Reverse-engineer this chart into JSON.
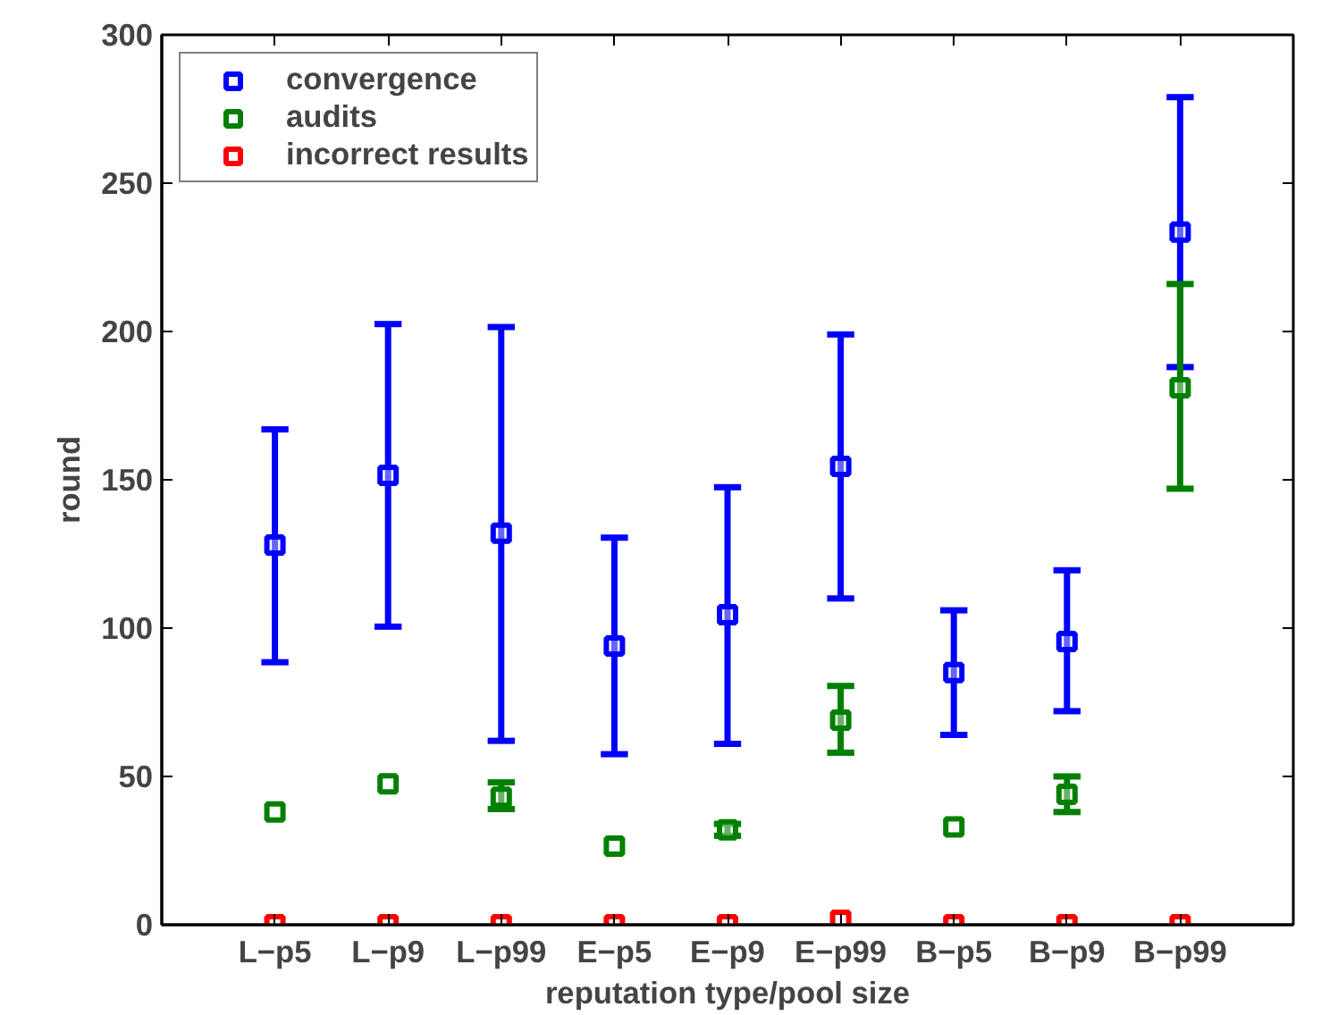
{
  "chart_data": {
    "type": "scatter",
    "xlabel": "reputation type/pool size",
    "ylabel": "round",
    "categories": [
      "L−p5",
      "L−p9",
      "L−p99",
      "E−p5",
      "E−p9",
      "E−p99",
      "B−p5",
      "B−p9",
      "B−p99"
    ],
    "ylim": [
      0,
      300
    ],
    "yticks": [
      0,
      50,
      100,
      150,
      200,
      250,
      300
    ],
    "marker": "square",
    "grid": false,
    "legend": "top left",
    "series": [
      {
        "name": "convergence",
        "color": "#0000ff",
        "values": [
          128,
          151.5,
          132,
          94,
          104.5,
          154.5,
          85,
          95.5,
          233.5
        ],
        "errors": [
          [
            88.5,
            167
          ],
          [
            100.5,
            202.5
          ],
          [
            62,
            201.5
          ],
          [
            57.5,
            130.5
          ],
          [
            61,
            147.5
          ],
          [
            110,
            199
          ],
          [
            64,
            106
          ],
          [
            72,
            119.5
          ],
          [
            188,
            279
          ]
        ]
      },
      {
        "name": "audits",
        "color": "#008000",
        "values": [
          38,
          47.5,
          43,
          26.5,
          32,
          69,
          33,
          44,
          181
        ],
        "errors": [
          null,
          null,
          [
            39,
            48
          ],
          null,
          [
            30,
            34
          ],
          [
            58,
            80.5
          ],
          null,
          [
            38,
            50
          ],
          [
            147,
            216
          ]
        ]
      },
      {
        "name": "incorrect results",
        "color": "#ff0000",
        "values": [
          0,
          0,
          0,
          0,
          0,
          1.5,
          0,
          0,
          0
        ],
        "errors": [
          null,
          null,
          null,
          null,
          null,
          null,
          null,
          null,
          null
        ]
      }
    ]
  }
}
